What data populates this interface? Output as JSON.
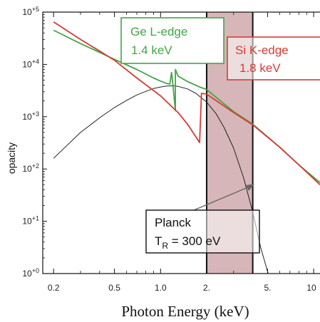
{
  "chart_data": {
    "type": "line",
    "xlabel": "Photon Energy (keV)",
    "ylabel": "opacity",
    "x_scale": "log",
    "y_scale": "log",
    "xlim": [
      0.17,
      11
    ],
    "ylim": [
      1,
      100000
    ],
    "x_ticks": [
      "0.2",
      "0.5",
      "1.0",
      "2.",
      "5.",
      "10"
    ],
    "x_tick_values": [
      0.2,
      0.5,
      1.0,
      2.0,
      5.0,
      10.0
    ],
    "y_tick_labels": [
      "10+0",
      "10+1",
      "10+2",
      "10+3",
      "10+4",
      "10+5"
    ],
    "y_tick_parts": [
      {
        "base": "10",
        "exp": "+0"
      },
      {
        "base": "10",
        "exp": "+1"
      },
      {
        "base": "10",
        "exp": "+2"
      },
      {
        "base": "10",
        "exp": "+3"
      },
      {
        "base": "10",
        "exp": "+4"
      },
      {
        "base": "10",
        "exp": "+5"
      }
    ],
    "y_tick_values": [
      1,
      10,
      100,
      1000,
      10000,
      100000
    ],
    "shaded_band": {
      "x": [
        2.0,
        4.0
      ],
      "color": "#cfa9ab"
    },
    "series": [
      {
        "label": "Ge",
        "color": "#44a447",
        "x": [
          0.2,
          0.3,
          0.4,
          0.5,
          0.7,
          0.9,
          1.0,
          1.1,
          1.15,
          1.18,
          1.2,
          1.25,
          1.25,
          1.3,
          1.5,
          1.8,
          2.0,
          3.0,
          4.0,
          6.0,
          8.0,
          11.0
        ],
        "y": [
          45000,
          25000,
          17000,
          12500,
          8000,
          5500,
          4800,
          4300,
          4200,
          7000,
          4500,
          1300,
          8000,
          6000,
          4700,
          3700,
          3300,
          1250,
          720,
          260,
          120,
          55
        ]
      },
      {
        "label": "Si",
        "color": "#d83b34",
        "x": [
          0.2,
          0.3,
          0.4,
          0.5,
          0.7,
          1.0,
          1.3,
          1.5,
          1.8,
          1.85,
          2.0,
          3.0,
          4.0,
          6.0,
          8.0,
          11.0
        ],
        "y": [
          65000,
          30000,
          18000,
          12000,
          5500,
          2500,
          1200,
          720,
          320,
          2800,
          2700,
          1200,
          700,
          260,
          120,
          50
        ]
      },
      {
        "label": "Planck",
        "color": "#222222",
        "x": [
          0.2,
          0.3,
          0.4,
          0.5,
          0.6,
          0.7,
          0.8,
          0.9,
          1.0,
          1.1,
          1.2,
          1.3,
          1.5,
          1.7,
          2.0,
          2.3,
          2.6,
          3.0,
          3.5,
          4.0,
          4.5,
          5.0,
          5.3
        ],
        "y": [
          160,
          500,
          950,
          1500,
          2050,
          2600,
          3050,
          3450,
          3700,
          3850,
          3900,
          3800,
          3400,
          2800,
          1900,
          1150,
          620,
          250,
          65,
          15,
          3.2,
          1.1,
          0.6
        ]
      }
    ],
    "annotations": {
      "ge": {
        "line1": "Ge L-edge",
        "line2": "1.4 keV",
        "color": "#44a447"
      },
      "si": {
        "line1": "Si K-edge",
        "line2": "1.8 keV",
        "color": "#d83b34"
      },
      "planck": {
        "line1": "Planck",
        "line2_main": "T",
        "line2_sub": "R",
        "line2_rest": " = 300 eV",
        "color": "#111111"
      }
    }
  }
}
